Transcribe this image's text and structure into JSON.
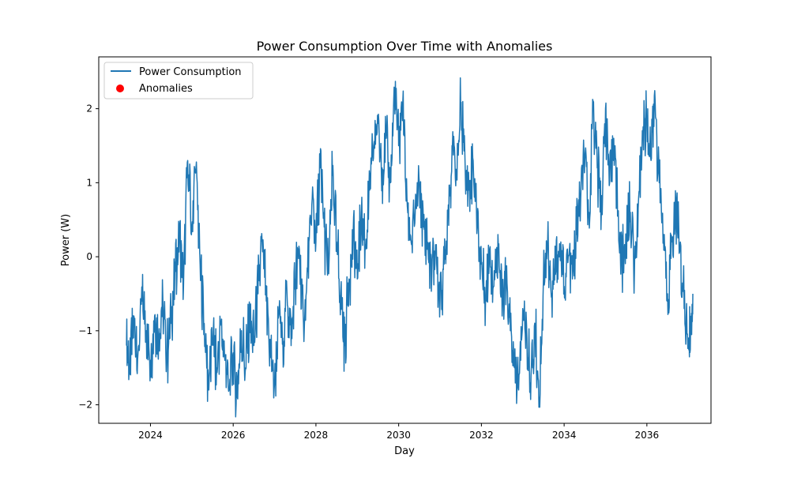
{
  "chart_data": {
    "type": "line",
    "title": "Power Consumption Over Time with Anomalies",
    "xlabel": "Day",
    "ylabel": "Power (W)",
    "xlim": [
      2022.75,
      2037.55
    ],
    "ylim": [
      -2.25,
      2.7
    ],
    "xticks": [
      {
        "value": 2024,
        "label": "2024"
      },
      {
        "value": 2026,
        "label": "2026"
      },
      {
        "value": 2028,
        "label": "2028"
      },
      {
        "value": 2030,
        "label": "2030"
      },
      {
        "value": 2032,
        "label": "2032"
      },
      {
        "value": 2034,
        "label": "2034"
      },
      {
        "value": 2036,
        "label": "2036"
      }
    ],
    "yticks": [
      {
        "value": -2,
        "label": "−2"
      },
      {
        "value": -1,
        "label": "−1"
      },
      {
        "value": 0,
        "label": "0"
      },
      {
        "value": 1,
        "label": "1"
      },
      {
        "value": 2,
        "label": "2"
      }
    ],
    "grid": false,
    "legend_position": "top-left",
    "legend": [
      {
        "label": "Power Consumption",
        "kind": "line",
        "color": "#1f77b4"
      },
      {
        "label": "Anomalies",
        "kind": "marker",
        "color": "#ff0000"
      }
    ],
    "series": [
      {
        "name": "Power Consumption",
        "color": "#1f77b4",
        "points": [
          [
            2023.42,
            -1.2
          ],
          [
            2023.5,
            -1.5
          ],
          [
            2023.6,
            -0.8
          ],
          [
            2023.7,
            -1.3
          ],
          [
            2023.8,
            -0.6
          ],
          [
            2023.9,
            -1.0
          ],
          [
            2024.0,
            -1.4
          ],
          [
            2024.1,
            -0.8
          ],
          [
            2024.2,
            -1.1
          ],
          [
            2024.3,
            -0.6
          ],
          [
            2024.4,
            -1.3
          ],
          [
            2024.5,
            -0.9
          ],
          [
            2024.6,
            -0.2
          ],
          [
            2024.7,
            0.3
          ],
          [
            2024.8,
            -0.4
          ],
          [
            2024.9,
            1.3
          ],
          [
            2025.0,
            0.4
          ],
          [
            2025.1,
            1.2
          ],
          [
            2025.2,
            -0.1
          ],
          [
            2025.3,
            -0.9
          ],
          [
            2025.4,
            -1.7
          ],
          [
            2025.5,
            -1.1
          ],
          [
            2025.6,
            -1.5
          ],
          [
            2025.7,
            -0.9
          ],
          [
            2025.8,
            -1.4
          ],
          [
            2025.9,
            -1.8
          ],
          [
            2026.0,
            -1.3
          ],
          [
            2026.1,
            -1.9
          ],
          [
            2026.2,
            -1.0
          ],
          [
            2026.3,
            -1.5
          ],
          [
            2026.4,
            -0.9
          ],
          [
            2026.5,
            -1.2
          ],
          [
            2026.6,
            -0.5
          ],
          [
            2026.7,
            0.2
          ],
          [
            2026.8,
            -0.6
          ],
          [
            2026.9,
            -1.3
          ],
          [
            2027.0,
            -1.7
          ],
          [
            2027.1,
            -0.8
          ],
          [
            2027.2,
            -1.1
          ],
          [
            2027.3,
            -0.5
          ],
          [
            2027.4,
            -1.2
          ],
          [
            2027.5,
            -0.3
          ],
          [
            2027.6,
            0.1
          ],
          [
            2027.7,
            -0.9
          ],
          [
            2027.8,
            -0.2
          ],
          [
            2027.9,
            0.7
          ],
          [
            2028.0,
            0.2
          ],
          [
            2028.1,
            1.2
          ],
          [
            2028.2,
            0.4
          ],
          [
            2028.3,
            -0.2
          ],
          [
            2028.4,
            1.1
          ],
          [
            2028.5,
            0.2
          ],
          [
            2028.6,
            -0.5
          ],
          [
            2028.7,
            -1.2
          ],
          [
            2028.8,
            -0.3
          ],
          [
            2028.9,
            0.3
          ],
          [
            2029.0,
            -0.3
          ],
          [
            2029.1,
            0.6
          ],
          [
            2029.2,
            0.1
          ],
          [
            2029.3,
            0.9
          ],
          [
            2029.4,
            1.5
          ],
          [
            2029.5,
            1.8
          ],
          [
            2029.6,
            1.2
          ],
          [
            2029.7,
            1.6
          ],
          [
            2029.8,
            1.0
          ],
          [
            2029.9,
            2.2
          ],
          [
            2030.0,
            1.5
          ],
          [
            2030.1,
            2.1
          ],
          [
            2030.2,
            0.8
          ],
          [
            2030.3,
            0.2
          ],
          [
            2030.4,
            0.6
          ],
          [
            2030.5,
            1.0
          ],
          [
            2030.6,
            0.4
          ],
          [
            2030.7,
            0.1
          ],
          [
            2030.8,
            -0.3
          ],
          [
            2030.9,
            0.1
          ],
          [
            2031.0,
            -0.6
          ],
          [
            2031.1,
            -0.1
          ],
          [
            2031.2,
            0.7
          ],
          [
            2031.3,
            1.5
          ],
          [
            2031.4,
            1.1
          ],
          [
            2031.5,
            2.0
          ],
          [
            2031.6,
            1.4
          ],
          [
            2031.7,
            0.9
          ],
          [
            2031.8,
            1.3
          ],
          [
            2031.9,
            0.4
          ],
          [
            2032.0,
            -0.1
          ],
          [
            2032.1,
            -0.6
          ],
          [
            2032.2,
            0.1
          ],
          [
            2032.3,
            -0.4
          ],
          [
            2032.4,
            0.3
          ],
          [
            2032.5,
            -0.8
          ],
          [
            2032.6,
            -0.3
          ],
          [
            2032.7,
            -1.0
          ],
          [
            2032.8,
            -1.5
          ],
          [
            2032.9,
            -1.8
          ],
          [
            2033.0,
            -0.7
          ],
          [
            2033.1,
            -1.1
          ],
          [
            2033.2,
            -1.6
          ],
          [
            2033.3,
            -1.0
          ],
          [
            2033.4,
            -1.9
          ],
          [
            2033.5,
            -0.3
          ],
          [
            2033.6,
            0.2
          ],
          [
            2033.7,
            -0.5
          ],
          [
            2033.8,
            -0.2
          ],
          [
            2033.9,
            0.1
          ],
          [
            2034.0,
            -0.4
          ],
          [
            2034.1,
            0.0
          ],
          [
            2034.2,
            -0.3
          ],
          [
            2034.3,
            0.3
          ],
          [
            2034.4,
            0.8
          ],
          [
            2034.5,
            1.3
          ],
          [
            2034.6,
            0.6
          ],
          [
            2034.7,
            2.1
          ],
          [
            2034.8,
            1.2
          ],
          [
            2034.9,
            0.6
          ],
          [
            2035.0,
            2.0
          ],
          [
            2035.1,
            1.0
          ],
          [
            2035.2,
            1.6
          ],
          [
            2035.3,
            0.6
          ],
          [
            2035.4,
            -0.1
          ],
          [
            2035.5,
            0.2
          ],
          [
            2035.6,
            0.6
          ],
          [
            2035.7,
            -0.2
          ],
          [
            2035.8,
            0.8
          ],
          [
            2035.9,
            1.6
          ],
          [
            2036.0,
            1.9
          ],
          [
            2036.1,
            1.3
          ],
          [
            2036.2,
            2.1
          ],
          [
            2036.3,
            1.0
          ],
          [
            2036.4,
            0.3
          ],
          [
            2036.5,
            -0.5
          ],
          [
            2036.6,
            0.2
          ],
          [
            2036.7,
            0.7
          ],
          [
            2036.8,
            0.1
          ],
          [
            2036.9,
            -0.7
          ],
          [
            2037.0,
            -1.2
          ],
          [
            2037.07,
            -1.0
          ],
          [
            2037.11,
            -0.5
          ]
        ]
      },
      {
        "name": "Anomalies",
        "color": "#ff0000",
        "points": []
      }
    ]
  }
}
